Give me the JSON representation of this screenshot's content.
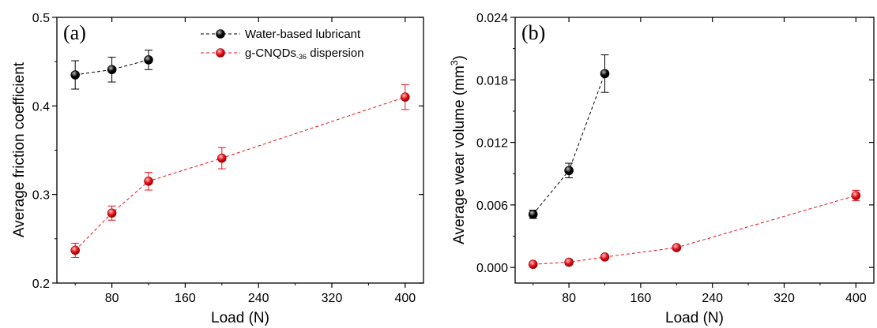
{
  "chart_data": [
    {
      "type": "line",
      "panel_label": "(a)",
      "xlabel": "Load (N)",
      "ylabel": "Average friction coefficient",
      "xlim": [
        20,
        420
      ],
      "ylim": [
        0.2,
        0.5
      ],
      "x_ticks": [
        "80",
        "160",
        "240",
        "320",
        "400"
      ],
      "y_ticks": [
        "0.2",
        "0.3",
        "0.4",
        "0.5"
      ],
      "legend_position": "top-center",
      "series": [
        {
          "name": "Water-based lubricant",
          "name_parts": [
            "Water-based lubricant",
            "",
            ""
          ],
          "color": "#000000",
          "x": [
            40,
            80,
            120
          ],
          "y": [
            0.435,
            0.441,
            0.452
          ],
          "err": [
            0.016,
            0.014,
            0.011
          ]
        },
        {
          "name": "g-CNQDs-36 dispersion",
          "name_parts": [
            "g-CNQDs",
            "-36",
            " dispersion"
          ],
          "color": "#e8101a",
          "x": [
            40,
            80,
            120,
            200,
            400
          ],
          "y": [
            0.237,
            0.279,
            0.315,
            0.341,
            0.41
          ],
          "err": [
            0.008,
            0.008,
            0.01,
            0.012,
            0.014
          ]
        }
      ]
    },
    {
      "type": "line",
      "panel_label": "(b)",
      "xlabel": "Load (N)",
      "ylabel": "Average wear volume (mm",
      "ylabel_sup": "3",
      "ylabel_end": ")",
      "xlim": [
        20,
        420
      ],
      "ylim": [
        -0.0015,
        0.024
      ],
      "x_ticks": [
        "80",
        "160",
        "240",
        "320",
        "400"
      ],
      "y_ticks": [
        "0.000",
        "0.006",
        "0.012",
        "0.018",
        "0.024"
      ],
      "series": [
        {
          "color": "#000000",
          "x": [
            40,
            80,
            120
          ],
          "y": [
            0.0051,
            0.0093,
            0.0186
          ],
          "err": [
            0.0004,
            0.0007,
            0.0018
          ]
        },
        {
          "color": "#e8101a",
          "x": [
            40,
            80,
            120,
            200,
            400
          ],
          "y": [
            0.0003,
            0.0005,
            0.001,
            0.0019,
            0.0069
          ],
          "err": [
            0.0001,
            0.0001,
            0.0001,
            0.0002,
            0.0005
          ]
        }
      ]
    }
  ]
}
